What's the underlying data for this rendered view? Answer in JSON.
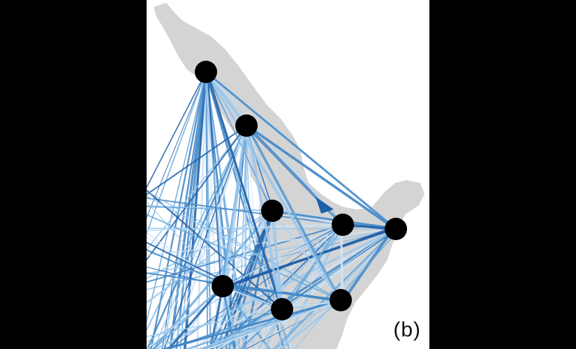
{
  "figure": {
    "panel_label": "(b)",
    "land_color": "#d4d4d4",
    "node_color": "#000000",
    "flow_colors": [
      "#cfe3f5",
      "#9cc8ec",
      "#6aa9dc",
      "#3d85c6",
      "#1f5fa8"
    ]
  },
  "nodes": [
    {
      "id": "n1"
    },
    {
      "id": "n2"
    },
    {
      "id": "n3"
    },
    {
      "id": "n4"
    },
    {
      "id": "n5"
    },
    {
      "id": "n6"
    },
    {
      "id": "n7"
    },
    {
      "id": "n8"
    }
  ]
}
